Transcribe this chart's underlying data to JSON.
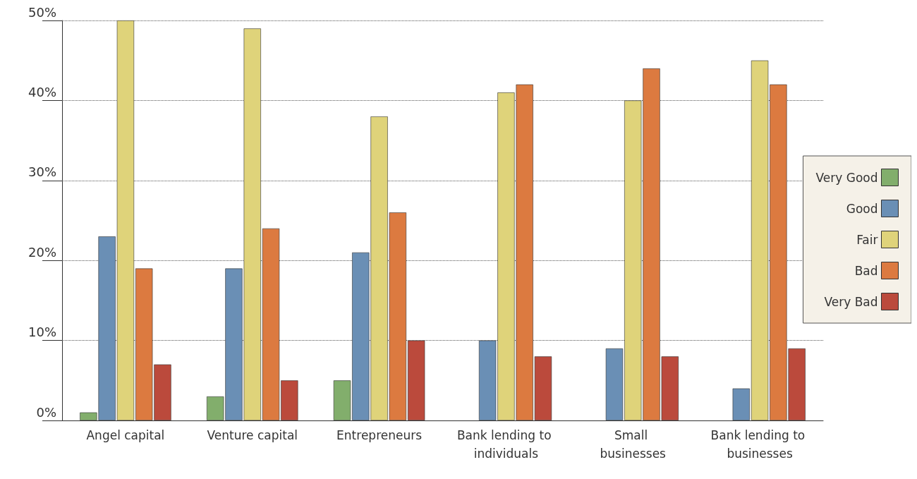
{
  "chart_data": {
    "type": "bar",
    "categories": [
      "Angel capital",
      "Venture capital",
      "Entrepreneurs",
      "Bank lending to individuals",
      "Small businesses",
      "Bank lending to businesses"
    ],
    "series": [
      {
        "name": "Very Good",
        "color": "#82ae6c",
        "values": [
          1,
          3,
          5,
          0,
          0,
          0
        ]
      },
      {
        "name": "Good",
        "color": "#6a8fb5",
        "values": [
          23,
          19,
          21,
          10,
          9,
          4
        ]
      },
      {
        "name": "Fair",
        "color": "#dfd37a",
        "values": [
          50,
          49,
          38,
          41,
          40,
          45
        ]
      },
      {
        "name": "Bad",
        "color": "#dc7a40",
        "values": [
          19,
          24,
          26,
          42,
          44,
          42
        ]
      },
      {
        "name": "Very Bad",
        "color": "#bb4a3c",
        "values": [
          7,
          5,
          10,
          8,
          8,
          9
        ]
      }
    ],
    "ylim": [
      0,
      50
    ],
    "yticks": [
      {
        "value": 0,
        "label": "0%"
      },
      {
        "value": 10,
        "label": "10%"
      },
      {
        "value": 20,
        "label": "20%"
      },
      {
        "value": 30,
        "label": "30%"
      },
      {
        "value": 40,
        "label": "40%"
      },
      {
        "value": 50,
        "label": "50%"
      }
    ],
    "grid": "y",
    "legend": "right"
  }
}
